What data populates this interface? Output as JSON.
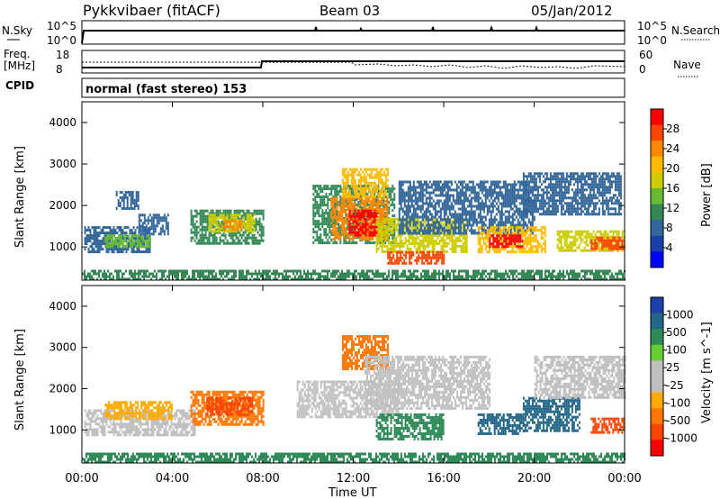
{
  "header": {
    "title": "Pykkvibaer (fitACF)",
    "beam": "Beam 03",
    "date": "05/Jan/2012"
  },
  "nsky_panel": {
    "left_label": "N.Sky",
    "right_label": "N.Search",
    "ticks": [
      "10^5",
      "10^0"
    ]
  },
  "freq_panel": {
    "left_label_1": "Freq.",
    "left_label_2": "[MHz]",
    "left_ticks": [
      "18",
      "8"
    ],
    "right_label": "Nave",
    "right_ticks": [
      "60",
      "0"
    ]
  },
  "cpid": {
    "label": "CPID",
    "mode": "normal (fast stereo) 153"
  },
  "power_panel": {
    "ylabel": "Slant Range [km]",
    "colorbar_label": "Power [dB]",
    "colorbar_ticks": [
      "28",
      "24",
      "20",
      "16",
      "12",
      "8",
      "4"
    ],
    "colorbar_colors": [
      "#ff0000",
      "#ff4400",
      "#ff8800",
      "#ffbb00",
      "#cccc00",
      "#66bb33",
      "#338855",
      "#336699",
      "#1a3faa",
      "#0000ff"
    ]
  },
  "velocity_panel": {
    "ylabel": "Slant Range [km]",
    "colorbar_label": "Velocity [m s^-1]",
    "colorbar_ticks": [
      "1000",
      "500",
      "100",
      "25",
      "-25",
      "-100",
      "-500",
      "-1000"
    ],
    "colorbar_colors": [
      "#1f3faa",
      "#226688",
      "#2e8b57",
      "#66cc33",
      "#c0c0c0",
      "#c0c0c0",
      "#ffaa00",
      "#ff7700",
      "#ff4400",
      "#ff0000"
    ]
  },
  "xaxis": {
    "label": "Time UT",
    "ticks": [
      "00:00",
      "04:00",
      "08:00",
      "12:00",
      "16:00",
      "20:00",
      "00:00"
    ]
  },
  "chart_data": [
    {
      "type": "line",
      "name": "N.Sky / N.Search",
      "x": [
        "00:00",
        "04:00",
        "08:00",
        "12:00",
        "16:00",
        "20:00",
        "24:00"
      ],
      "ylim": [
        "10^0",
        "10^5"
      ]
    },
    {
      "type": "line",
      "name": "Freq / Nave",
      "x": [
        "00:00",
        "08:00",
        "12:00",
        "16:00",
        "20:00",
        "24:00"
      ],
      "y_freq_mhz": [
        10,
        12,
        12,
        12,
        12,
        12
      ],
      "ylim_freq": [
        8,
        18
      ],
      "ylim_nave": [
        0,
        60
      ]
    },
    {
      "type": "heatmap",
      "name": "Power",
      "xlim": [
        "00:00",
        "24:00"
      ],
      "ylim": [
        200,
        4500
      ],
      "yticks": [
        1000,
        2000,
        3000,
        4000
      ],
      "color_scale": "power",
      "patches": [
        {
          "t0": 0.1,
          "t1": 3.0,
          "r0": 900,
          "r1": 1500,
          "v": 8
        },
        {
          "t0": 1.0,
          "t1": 3.0,
          "r0": 1000,
          "r1": 1300,
          "v": 14
        },
        {
          "t0": 2.5,
          "t1": 3.8,
          "r0": 1300,
          "r1": 1800,
          "v": 8
        },
        {
          "t0": 4.8,
          "t1": 8.0,
          "r0": 1100,
          "r1": 1900,
          "v": 10
        },
        {
          "t0": 5.6,
          "t1": 7.6,
          "r0": 1350,
          "r1": 1800,
          "v": 16
        },
        {
          "t0": 6.2,
          "t1": 7.0,
          "r0": 1450,
          "r1": 1650,
          "v": 22
        },
        {
          "t0": 1.5,
          "t1": 2.5,
          "r0": 1950,
          "r1": 2350,
          "v": 7
        },
        {
          "t0": 10.2,
          "t1": 13.8,
          "r0": 1100,
          "r1": 2500,
          "v": 12
        },
        {
          "t0": 11.0,
          "t1": 13.5,
          "r0": 1200,
          "r1": 2200,
          "v": 22
        },
        {
          "t0": 11.8,
          "t1": 13.0,
          "r0": 1300,
          "r1": 1900,
          "v": 28
        },
        {
          "t0": 11.5,
          "t1": 13.5,
          "r0": 2200,
          "r1": 2900,
          "v": 20
        },
        {
          "t0": 13.0,
          "t1": 17.0,
          "r0": 900,
          "r1": 1700,
          "v": 16
        },
        {
          "t0": 13.5,
          "t1": 16.0,
          "r0": 600,
          "r1": 900,
          "v": 26
        },
        {
          "t0": 14.0,
          "t1": 20.0,
          "r0": 1300,
          "r1": 2600,
          "v": 8
        },
        {
          "t0": 17.5,
          "t1": 20.5,
          "r0": 900,
          "r1": 1500,
          "v": 20
        },
        {
          "t0": 18.0,
          "t1": 19.5,
          "r0": 1000,
          "r1": 1300,
          "v": 28
        },
        {
          "t0": 19.5,
          "t1": 23.8,
          "r0": 1800,
          "r1": 2800,
          "v": 8
        },
        {
          "t0": 21.0,
          "t1": 24.0,
          "r0": 900,
          "r1": 1400,
          "v": 16
        },
        {
          "t0": 22.5,
          "t1": 24.0,
          "r0": 950,
          "r1": 1250,
          "v": 26
        },
        {
          "t0": 0.0,
          "t1": 24.0,
          "r0": 250,
          "r1": 450,
          "v": 10
        }
      ]
    },
    {
      "type": "heatmap",
      "name": "Velocity",
      "xlim": [
        "00:00",
        "24:00"
      ],
      "ylim": [
        200,
        4500
      ],
      "yticks": [
        1000,
        2000,
        3000,
        4000
      ],
      "color_scale": "velocity",
      "patches": [
        {
          "t0": 0.1,
          "t1": 5.0,
          "r0": 900,
          "r1": 1500,
          "v": 0
        },
        {
          "t0": 1.0,
          "t1": 4.0,
          "r0": 1300,
          "r1": 1700,
          "v": -80
        },
        {
          "t0": 4.8,
          "t1": 8.0,
          "r0": 1150,
          "r1": 1950,
          "v": -300
        },
        {
          "t0": 5.5,
          "t1": 7.5,
          "r0": 1400,
          "r1": 1800,
          "v": -600
        },
        {
          "t0": 9.5,
          "t1": 14.0,
          "r0": 1300,
          "r1": 2200,
          "v": 0
        },
        {
          "t0": 11.5,
          "t1": 13.5,
          "r0": 2500,
          "r1": 3300,
          "v": -300
        },
        {
          "t0": 12.5,
          "t1": 18.0,
          "r0": 1500,
          "r1": 2800,
          "v": 0
        },
        {
          "t0": 13.0,
          "t1": 16.0,
          "r0": 800,
          "r1": 1400,
          "v": 60
        },
        {
          "t0": 17.5,
          "t1": 19.5,
          "r0": 900,
          "r1": 1400,
          "v": 700
        },
        {
          "t0": 19.5,
          "t1": 22.0,
          "r0": 1000,
          "r1": 1800,
          "v": 300
        },
        {
          "t0": 20.0,
          "t1": 24.0,
          "r0": 1800,
          "r1": 2800,
          "v": 0
        },
        {
          "t0": 22.5,
          "t1": 24.0,
          "r0": 950,
          "r1": 1300,
          "v": -700
        },
        {
          "t0": 0.0,
          "t1": 24.0,
          "r0": 250,
          "r1": 450,
          "v": 60
        }
      ]
    }
  ]
}
